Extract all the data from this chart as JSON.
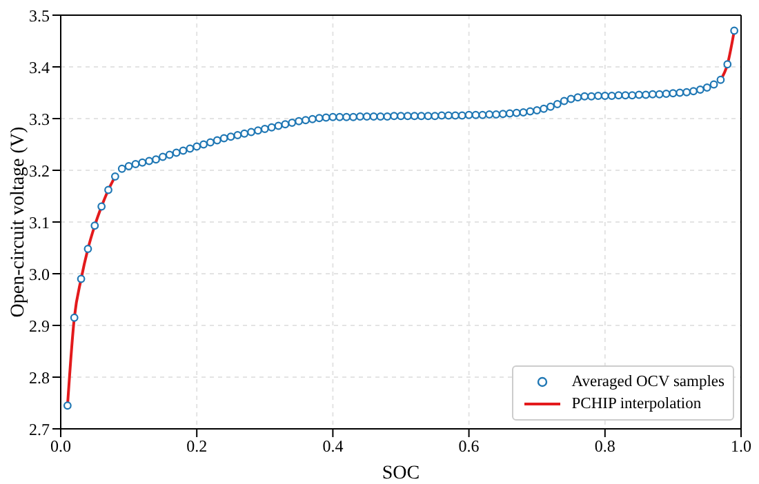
{
  "chart_data": {
    "type": "line",
    "xlabel": "SOC",
    "ylabel": "Open-circuit voltage (V)",
    "x": [
      0.01,
      0.02,
      0.03,
      0.04,
      0.05,
      0.06,
      0.07,
      0.08,
      0.09,
      0.1,
      0.11,
      0.12,
      0.13,
      0.14,
      0.15,
      0.16,
      0.17,
      0.18,
      0.19,
      0.2,
      0.21,
      0.22,
      0.23,
      0.24,
      0.25,
      0.26,
      0.27,
      0.28,
      0.29,
      0.3,
      0.31,
      0.32,
      0.33,
      0.34,
      0.35,
      0.36,
      0.37,
      0.38,
      0.39,
      0.4,
      0.41,
      0.42,
      0.43,
      0.44,
      0.45,
      0.46,
      0.47,
      0.48,
      0.49,
      0.5,
      0.51,
      0.52,
      0.53,
      0.54,
      0.55,
      0.56,
      0.57,
      0.58,
      0.59,
      0.6,
      0.61,
      0.62,
      0.63,
      0.64,
      0.65,
      0.66,
      0.67,
      0.68,
      0.69,
      0.7,
      0.71,
      0.72,
      0.73,
      0.74,
      0.75,
      0.76,
      0.77,
      0.78,
      0.79,
      0.8,
      0.81,
      0.82,
      0.83,
      0.84,
      0.85,
      0.86,
      0.87,
      0.88,
      0.89,
      0.9,
      0.91,
      0.92,
      0.93,
      0.94,
      0.95,
      0.96,
      0.97,
      0.98,
      0.99
    ],
    "series": [
      {
        "name": "Averaged OCV samples",
        "type": "scatter",
        "marker": "circle",
        "color": "#1f77b4",
        "values": [
          2.745,
          2.915,
          2.99,
          3.048,
          3.093,
          3.13,
          3.162,
          3.188,
          3.203,
          3.208,
          3.212,
          3.215,
          3.218,
          3.221,
          3.226,
          3.23,
          3.234,
          3.238,
          3.242,
          3.246,
          3.25,
          3.254,
          3.258,
          3.262,
          3.265,
          3.268,
          3.271,
          3.274,
          3.277,
          3.28,
          3.283,
          3.286,
          3.289,
          3.292,
          3.295,
          3.297,
          3.299,
          3.301,
          3.302,
          3.303,
          3.303,
          3.303,
          3.303,
          3.304,
          3.304,
          3.304,
          3.304,
          3.304,
          3.305,
          3.305,
          3.305,
          3.305,
          3.305,
          3.305,
          3.305,
          3.306,
          3.306,
          3.306,
          3.306,
          3.307,
          3.307,
          3.307,
          3.308,
          3.308,
          3.309,
          3.31,
          3.311,
          3.312,
          3.314,
          3.316,
          3.319,
          3.323,
          3.328,
          3.334,
          3.338,
          3.341,
          3.343,
          3.343,
          3.344,
          3.344,
          3.344,
          3.345,
          3.345,
          3.345,
          3.346,
          3.346,
          3.347,
          3.347,
          3.348,
          3.349,
          3.35,
          3.351,
          3.353,
          3.356,
          3.36,
          3.366,
          3.375,
          3.405,
          3.47
        ]
      },
      {
        "name": "PCHIP interpolation",
        "marker": "none",
        "line_style": "solid",
        "color": "#e31a1c",
        "values": [
          2.745,
          2.915,
          2.99,
          3.048,
          3.093,
          3.13,
          3.162,
          3.188,
          null,
          null,
          null,
          null,
          null,
          null,
          null,
          null,
          null,
          null,
          null,
          null,
          null,
          null,
          null,
          null,
          null,
          null,
          null,
          null,
          null,
          null,
          null,
          null,
          null,
          null,
          null,
          null,
          null,
          null,
          null,
          null,
          null,
          null,
          null,
          null,
          null,
          null,
          null,
          null,
          null,
          null,
          null,
          null,
          null,
          null,
          null,
          null,
          null,
          null,
          null,
          null,
          null,
          null,
          null,
          null,
          null,
          null,
          null,
          null,
          null,
          null,
          null,
          null,
          null,
          null,
          null,
          null,
          null,
          null,
          null,
          null,
          null,
          null,
          null,
          null,
          null,
          null,
          null,
          null,
          null,
          null,
          null,
          null,
          null,
          null,
          null,
          null,
          3.375,
          3.405,
          3.47
        ]
      }
    ],
    "xlim": [
      0,
      1
    ],
    "xticks": [
      {
        "value": 0,
        "label": "0.0"
      },
      0.2,
      0.4,
      0.6,
      0.8,
      {
        "value": 1,
        "label": "1.0"
      }
    ],
    "ylim": [
      2.7,
      3.5
    ],
    "yticks": [
      2.7,
      2.8,
      2.9,
      {
        "value": 3,
        "label": "3.0"
      },
      3.1,
      3.2,
      3.3,
      3.4,
      3.5
    ],
    "grid": true,
    "legend": "bottom right"
  }
}
